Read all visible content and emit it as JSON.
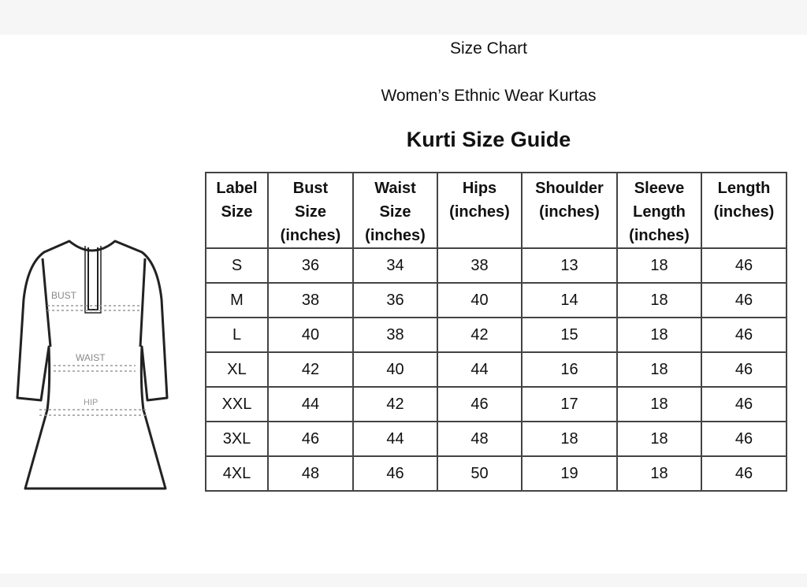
{
  "titles": {
    "line1": "Size Chart",
    "line2": "Women’s Ethnic Wear Kurtas",
    "heading": "Kurti Size Guide"
  },
  "illustration": {
    "labels": {
      "bust": "BUST",
      "waist": "WAIST",
      "hip": "HIP"
    }
  },
  "table": {
    "headers": [
      [
        "Label",
        "Size",
        ""
      ],
      [
        "Bust",
        "Size",
        "(inches)"
      ],
      [
        "Waist",
        "Size",
        "(inches)"
      ],
      [
        "Hips",
        "(inches)",
        ""
      ],
      [
        "Shoulder",
        "(inches)",
        ""
      ],
      [
        "Sleeve",
        "Length",
        "(inches)"
      ],
      [
        "Length",
        "(inches)",
        ""
      ]
    ],
    "rows": [
      [
        "S",
        "36",
        "34",
        "38",
        "13",
        "18",
        "46"
      ],
      [
        "M",
        "38",
        "36",
        "40",
        "14",
        "18",
        "46"
      ],
      [
        "L",
        "40",
        "38",
        "42",
        "15",
        "18",
        "46"
      ],
      [
        "XL",
        "42",
        "40",
        "44",
        "16",
        "18",
        "46"
      ],
      [
        "XXL",
        "44",
        "42",
        "46",
        "17",
        "18",
        "46"
      ],
      [
        "3XL",
        "46",
        "44",
        "48",
        "18",
        "18",
        "46"
      ],
      [
        "4XL",
        "48",
        "46",
        "50",
        "19",
        "18",
        "46"
      ]
    ]
  }
}
